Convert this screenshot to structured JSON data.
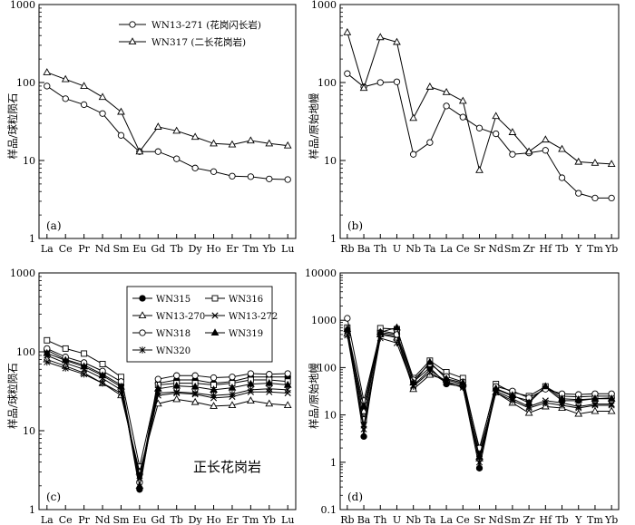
{
  "chart_data": [
    {
      "id": "a",
      "type": "line",
      "yscale": "log",
      "ylim": [
        1,
        1000
      ],
      "yticks": [
        1,
        10,
        100,
        1000
      ],
      "ytick_labels": [
        "1",
        "10",
        "100",
        "1000"
      ],
      "ylabel": "样品/球粒陨石",
      "panel_label": "(a)",
      "categories": [
        "La",
        "Ce",
        "Pr",
        "Nd",
        "Sm",
        "Eu",
        "Gd",
        "Tb",
        "Dy",
        "Ho",
        "Er",
        "Tm",
        "Yb",
        "Lu"
      ],
      "legend": {
        "position": "top-right"
      },
      "series": [
        {
          "name": "WN13-271 (花岗闪长岩)",
          "marker": "circle-open",
          "color": "#000000",
          "values": [
            90,
            62,
            52,
            40,
            21,
            13,
            13,
            10.5,
            8,
            7.2,
            6.3,
            6.2,
            5.8,
            5.7
          ]
        },
        {
          "name": "WN317 (二长花岗岩)",
          "marker": "triangle-open",
          "color": "#000000",
          "values": [
            135,
            110,
            90,
            65,
            42,
            13,
            27,
            24,
            20,
            16.5,
            16,
            18,
            16.5,
            15.5
          ]
        }
      ]
    },
    {
      "id": "b",
      "type": "line",
      "yscale": "log",
      "ylim": [
        1,
        1000
      ],
      "yticks": [
        1,
        10,
        100,
        1000
      ],
      "ytick_labels": [
        "1",
        "10",
        "100",
        "1000"
      ],
      "ylabel": "样品/原始地幔",
      "panel_label": "(b)",
      "categories": [
        "Rb",
        "Ba",
        "Th",
        "U",
        "Nb",
        "Ta",
        "La",
        "Ce",
        "Sr",
        "Nd",
        "Sm",
        "Zr",
        "Hf",
        "Tb",
        "Y",
        "Tm",
        "Yb"
      ],
      "series": [
        {
          "name": "WN13-271",
          "marker": "circle-open",
          "color": "#000000",
          "values": [
            130,
            88,
            100,
            102,
            12,
            17,
            50,
            36,
            26,
            22,
            12,
            12.5,
            13.5,
            6,
            3.8,
            3.3,
            3.3
          ]
        },
        {
          "name": "WN317",
          "marker": "triangle-open",
          "color": "#000000",
          "values": [
            440,
            85,
            380,
            330,
            35,
            88,
            75,
            58,
            7.5,
            37,
            23,
            13,
            18.5,
            14,
            9.6,
            9.3,
            9
          ]
        }
      ]
    },
    {
      "id": "c",
      "type": "line",
      "yscale": "log",
      "ylim": [
        1,
        1000
      ],
      "yticks": [
        1,
        10,
        100,
        1000
      ],
      "ytick_labels": [
        "1",
        "10",
        "100",
        "1000"
      ],
      "ylabel": "样品/球粒陨石",
      "panel_label": "(c)",
      "annotation": "正长花岗岩",
      "categories": [
        "La",
        "Ce",
        "Pr",
        "Nd",
        "Sm",
        "Eu",
        "Gd",
        "Tb",
        "Dy",
        "Ho",
        "Er",
        "Tm",
        "Yb",
        "Lu"
      ],
      "legend": {
        "position": "top-center",
        "columns": 2
      },
      "series": [
        {
          "name": "WN315",
          "marker": "circle-filled",
          "color": "#000000",
          "values": [
            105,
            80,
            68,
            52,
            38,
            1.8,
            40,
            44,
            44,
            40,
            42,
            48,
            48,
            48
          ]
        },
        {
          "name": "WN316",
          "marker": "square-open",
          "color": "#000000",
          "values": [
            140,
            110,
            95,
            70,
            48,
            3.5,
            38,
            40,
            40,
            38,
            40,
            44,
            44,
            42
          ]
        },
        {
          "name": "WN13-270",
          "marker": "triangle-open",
          "color": "#000000",
          "values": [
            80,
            66,
            54,
            40,
            28,
            3,
            22,
            25,
            23,
            20.5,
            21,
            24,
            22,
            21
          ]
        },
        {
          "name": "WN13-272",
          "marker": "x",
          "color": "#000000",
          "values": [
            90,
            72,
            60,
            46,
            33,
            2.5,
            28,
            30,
            29,
            26,
            27,
            31,
            31,
            30
          ]
        },
        {
          "name": "WN318",
          "marker": "circle-open",
          "color": "#000000",
          "values": [
            110,
            86,
            73,
            57,
            42,
            2.2,
            45,
            50,
            50,
            47,
            48,
            53,
            52,
            53
          ]
        },
        {
          "name": "WN319",
          "marker": "triangle-filled",
          "color": "#000000",
          "values": [
            96,
            78,
            65,
            50,
            36,
            2,
            34,
            37,
            36,
            33,
            35,
            39,
            40,
            38
          ]
        },
        {
          "name": "WN320",
          "marker": "asterisk",
          "color": "#000000",
          "values": [
            74,
            62,
            52,
            40,
            30,
            2.7,
            30,
            31,
            30,
            28,
            29,
            33,
            34,
            33
          ]
        }
      ]
    },
    {
      "id": "d",
      "type": "line",
      "yscale": "log",
      "ylim": [
        0.1,
        10000
      ],
      "yticks": [
        0.1,
        1,
        10,
        100,
        1000,
        10000
      ],
      "ytick_labels": [
        "0.1",
        "1",
        "10",
        "100",
        "1000",
        "10000"
      ],
      "ylabel": "样品/原始地幔",
      "panel_label": "(d)",
      "categories": [
        "Rb",
        "Ba",
        "Th",
        "U",
        "Nb",
        "Ta",
        "La",
        "Ce",
        "Sr",
        "Nd",
        "Sm",
        "Zr",
        "Hf",
        "Tb",
        "Y",
        "Tm",
        "Yb"
      ],
      "series": [
        {
          "name": "WN315",
          "marker": "circle-filled",
          "values": [
            620,
            3.5,
            600,
            520,
            50,
            100,
            45,
            40,
            0.75,
            35,
            25,
            20,
            38,
            20,
            20,
            22,
            23
          ]
        },
        {
          "name": "WN316",
          "marker": "square-open",
          "values": [
            700,
            8,
            680,
            650,
            60,
            140,
            80,
            60,
            1.8,
            45,
            30,
            25,
            40,
            25,
            24,
            25,
            25
          ]
        },
        {
          "name": "WN13-270",
          "marker": "triangle-open",
          "values": [
            520,
            12,
            500,
            430,
            35,
            70,
            55,
            45,
            1.2,
            30,
            18,
            11,
            15,
            14,
            10.5,
            12,
            12
          ]
        },
        {
          "name": "WN13-272",
          "marker": "x",
          "values": [
            580,
            6,
            520,
            460,
            42,
            90,
            50,
            42,
            1.5,
            32,
            22,
            15,
            20,
            18,
            15,
            17,
            17
          ]
        },
        {
          "name": "WN318",
          "marker": "circle-open",
          "values": [
            1100,
            20,
            550,
            500,
            55,
            120,
            65,
            50,
            2,
            40,
            32,
            23,
            35,
            28,
            27,
            28,
            28
          ]
        },
        {
          "name": "WN319",
          "marker": "triangle-filled",
          "values": [
            650,
            15,
            560,
            700,
            48,
            130,
            58,
            48,
            1.3,
            36,
            26,
            18,
            40,
            22,
            21,
            22,
            22
          ]
        },
        {
          "name": "WN320",
          "marker": "asterisk",
          "values": [
            480,
            5,
            420,
            330,
            40,
            80,
            48,
            38,
            1,
            30,
            20,
            14,
            18,
            16,
            14,
            16,
            16
          ]
        }
      ]
    }
  ]
}
